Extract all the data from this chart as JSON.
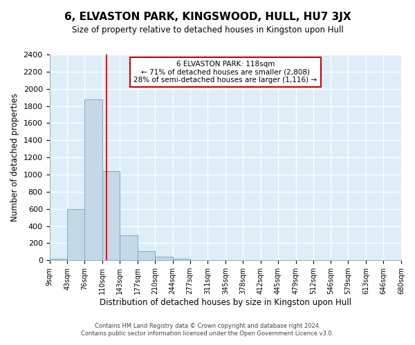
{
  "title": "6, ELVASTON PARK, KINGSWOOD, HULL, HU7 3JX",
  "subtitle": "Size of property relative to detached houses in Kingston upon Hull",
  "xlabel": "Distribution of detached houses by size in Kingston upon Hull",
  "ylabel": "Number of detached properties",
  "bar_edges": [
    9,
    43,
    76,
    110,
    143,
    177,
    210,
    244,
    277,
    311,
    345,
    378,
    412,
    445,
    479,
    512,
    546,
    579,
    613,
    646,
    680
  ],
  "bar_heights": [
    20,
    600,
    1880,
    1040,
    290,
    110,
    45,
    15,
    5,
    0,
    0,
    0,
    0,
    0,
    0,
    0,
    0,
    0,
    0,
    0
  ],
  "bar_color": "#c5d8e8",
  "bar_edge_color": "#7aaac8",
  "vline_x": 118,
  "vline_color": "red",
  "annotation_title": "6 ELVASTON PARK: 118sqm",
  "annotation_line1": "← 71% of detached houses are smaller (2,808)",
  "annotation_line2": "28% of semi-detached houses are larger (1,116) →",
  "annotation_box_color": "#ffffff",
  "annotation_box_edge": "#cc0000",
  "ylim": [
    0,
    2400
  ],
  "yticks": [
    0,
    200,
    400,
    600,
    800,
    1000,
    1200,
    1400,
    1600,
    1800,
    2000,
    2200,
    2400
  ],
  "xtick_labels": [
    "9sqm",
    "43sqm",
    "76sqm",
    "110sqm",
    "143sqm",
    "177sqm",
    "210sqm",
    "244sqm",
    "277sqm",
    "311sqm",
    "345sqm",
    "378sqm",
    "412sqm",
    "445sqm",
    "479sqm",
    "512sqm",
    "546sqm",
    "579sqm",
    "613sqm",
    "646sqm",
    "680sqm"
  ],
  "bg_color": "#ddeef8",
  "footer1": "Contains HM Land Registry data © Crown copyright and database right 2024.",
  "footer2": "Contains public sector information licensed under the Open Government Licence v3.0."
}
